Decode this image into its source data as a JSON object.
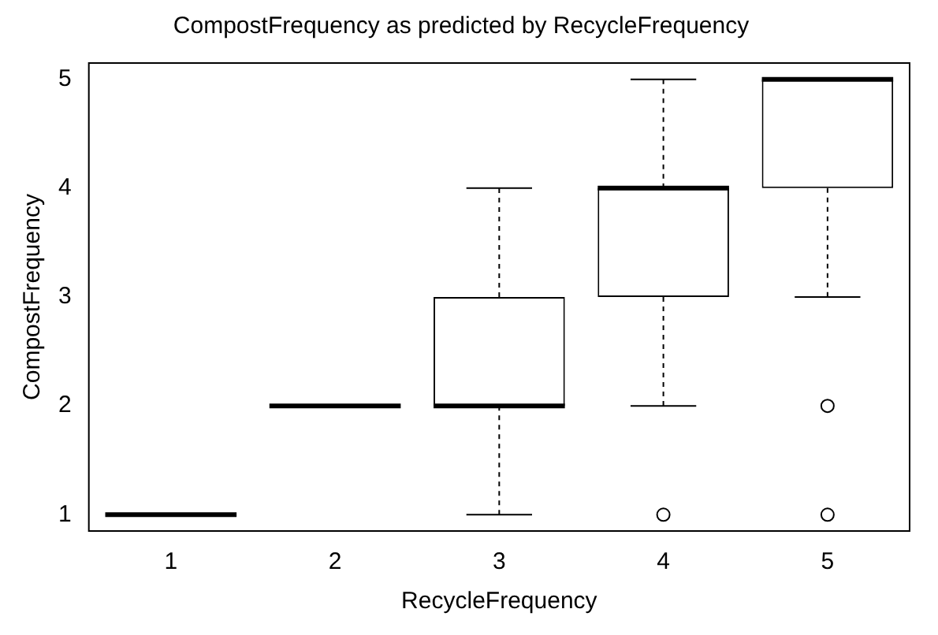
{
  "chart_data": {
    "type": "box",
    "title": "CompostFrequency as predicted by RecycleFrequency",
    "xlabel": "RecycleFrequency",
    "ylabel": "CompostFrequency",
    "categories": [
      "1",
      "2",
      "3",
      "4",
      "5"
    ],
    "boxes": [
      {
        "low": 1,
        "q1": 1,
        "median": 1,
        "q3": 1,
        "high": 1
      },
      {
        "low": 2,
        "q1": 2,
        "median": 2,
        "q3": 2,
        "high": 2
      },
      {
        "low": 1,
        "q1": 2,
        "median": 2,
        "q3": 3,
        "high": 4
      },
      {
        "low": 2,
        "q1": 3,
        "median": 4,
        "q3": 4,
        "high": 5,
        "outliers": [
          1
        ]
      },
      {
        "low": 3,
        "q1": 4,
        "median": 5,
        "q3": 5,
        "high": 5,
        "outliers": [
          1,
          2
        ]
      }
    ],
    "color": "#000000",
    "ylim": [
      0.85,
      5.15
    ],
    "yticks": [
      1,
      2,
      3,
      4,
      5
    ],
    "grid": false
  }
}
